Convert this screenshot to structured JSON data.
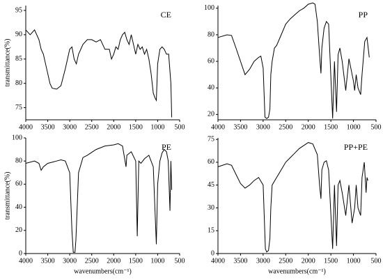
{
  "chart_data": [
    {
      "type": "line",
      "title": "CE",
      "ylabel": "transmittance(%)",
      "x": [
        4000,
        3900,
        3800,
        3700,
        3650,
        3600,
        3550,
        3500,
        3450,
        3400,
        3300,
        3200,
        3100,
        3000,
        2950,
        2900,
        2850,
        2800,
        2700,
        2600,
        2500,
        2400,
        2300,
        2200,
        2100,
        2050,
        2000,
        1950,
        1900,
        1850,
        1800,
        1750,
        1700,
        1650,
        1600,
        1550,
        1500,
        1450,
        1400,
        1350,
        1300,
        1250,
        1200,
        1150,
        1100,
        1060,
        1030,
        1000,
        950,
        900,
        850,
        800,
        750,
        700,
        680
      ],
      "series": [
        {
          "color": "#000000",
          "values": [
            91,
            90,
            91,
            89,
            87,
            86,
            84,
            82,
            80,
            79,
            78.8,
            79.5,
            83,
            87,
            87.5,
            85,
            84,
            86,
            88,
            89,
            89,
            88.5,
            89,
            87,
            87,
            85,
            86,
            87.5,
            87,
            89,
            90,
            90.5,
            89,
            88,
            90,
            88,
            86,
            88,
            87,
            87.5,
            86,
            87,
            85,
            82,
            78,
            77,
            76.5,
            84,
            87,
            87.5,
            87,
            86,
            86,
            80,
            73
          ]
        }
      ],
      "xlim": [
        4000,
        500
      ],
      "ylim": [
        72.5,
        96
      ],
      "xticks": [
        4000,
        3500,
        3000,
        2500,
        2000,
        1500,
        1000,
        500
      ],
      "yticks": [
        75,
        80,
        85,
        90,
        95
      ]
    },
    {
      "type": "line",
      "title": "PP",
      "x": [
        4000,
        3800,
        3700,
        3600,
        3500,
        3400,
        3300,
        3200,
        3100,
        3050,
        3000,
        2960,
        2920,
        2880,
        2850,
        2830,
        2800,
        2750,
        2700,
        2600,
        2500,
        2400,
        2300,
        2200,
        2100,
        2000,
        1900,
        1850,
        1800,
        1750,
        1720,
        1700,
        1650,
        1600,
        1550,
        1460,
        1420,
        1375,
        1340,
        1300,
        1250,
        1170,
        1100,
        1000,
        973,
        940,
        900,
        840,
        810,
        750,
        700,
        650
      ],
      "series": [
        {
          "color": "#000000",
          "values": [
            78,
            80,
            79.5,
            70,
            60,
            50,
            54,
            60,
            63,
            64,
            55,
            18,
            17,
            18,
            24,
            50,
            60,
            70,
            72,
            80,
            88,
            92,
            95,
            98,
            100,
            103,
            104,
            103,
            90,
            65,
            51,
            70,
            85,
            90,
            88,
            17,
            60,
            22,
            65,
            70,
            60,
            38,
            62,
            45,
            38,
            50,
            40,
            35,
            50,
            75,
            78,
            63
          ]
        }
      ],
      "xlim": [
        4000,
        500
      ],
      "ylim": [
        16,
        102
      ],
      "xticks": [
        4000,
        3500,
        3000,
        2500,
        2000,
        1500,
        1000,
        500
      ],
      "yticks": [
        20,
        40,
        60,
        80,
        100
      ]
    },
    {
      "type": "line",
      "title": "PE",
      "ylabel": "transmittance(%)",
      "xlabel": "wavenumbers(cm⁻¹)",
      "x": [
        4000,
        3800,
        3700,
        3650,
        3600,
        3500,
        3400,
        3300,
        3200,
        3100,
        3000,
        2950,
        2920,
        2880,
        2860,
        2840,
        2800,
        2700,
        2600,
        2400,
        2200,
        2000,
        1900,
        1800,
        1720,
        1700,
        1600,
        1500,
        1465,
        1430,
        1380,
        1300,
        1200,
        1100,
        1030,
        1000,
        950,
        900,
        850,
        800,
        760,
        720,
        700,
        680
      ],
      "series": [
        {
          "color": "#000000",
          "values": [
            78,
            80,
            78,
            72,
            75,
            78,
            79,
            80,
            81,
            80,
            70,
            20,
            1,
            1,
            12,
            30,
            70,
            83,
            85,
            90,
            93,
            94,
            95,
            93,
            75,
            85,
            88,
            80,
            15,
            80,
            78,
            82,
            85,
            75,
            8,
            60,
            80,
            87,
            90,
            88,
            80,
            37,
            80,
            55
          ]
        }
      ],
      "xlim": [
        4000,
        500
      ],
      "ylim": [
        0,
        100
      ],
      "xticks": [
        4000,
        3500,
        3000,
        2500,
        2000,
        1500,
        1000,
        500
      ],
      "yticks": [
        0,
        20,
        40,
        60,
        80,
        100
      ]
    },
    {
      "type": "line",
      "title": "PP+PE",
      "xlabel": "wavenumbers(cm⁻¹)",
      "x": [
        4000,
        3800,
        3700,
        3600,
        3500,
        3400,
        3300,
        3200,
        3100,
        3000,
        2950,
        2920,
        2880,
        2850,
        2830,
        2800,
        2700,
        2600,
        2500,
        2400,
        2300,
        2200,
        2100,
        2000,
        1900,
        1800,
        1750,
        1720,
        1700,
        1650,
        1600,
        1550,
        1460,
        1420,
        1375,
        1340,
        1300,
        1250,
        1170,
        1100,
        1030,
        973,
        940,
        900,
        840,
        810,
        760,
        720,
        700,
        680
      ],
      "series": [
        {
          "color": "#000000",
          "values": [
            57,
            59,
            58,
            52,
            46,
            43,
            45,
            48,
            50,
            45,
            3,
            1,
            2,
            10,
            30,
            45,
            50,
            55,
            60,
            63,
            66,
            69,
            71,
            73,
            72,
            65,
            45,
            36,
            55,
            60,
            61,
            55,
            3,
            45,
            5,
            45,
            48,
            40,
            25,
            45,
            20,
            30,
            45,
            30,
            25,
            50,
            60,
            40,
            50,
            48
          ]
        }
      ],
      "xlim": [
        4000,
        500
      ],
      "ylim": [
        0,
        76
      ],
      "xticks": [
        4000,
        3500,
        3000,
        2500,
        2000,
        1500,
        1000,
        500
      ],
      "yticks": [
        0,
        15,
        30,
        45,
        60,
        75
      ]
    }
  ]
}
